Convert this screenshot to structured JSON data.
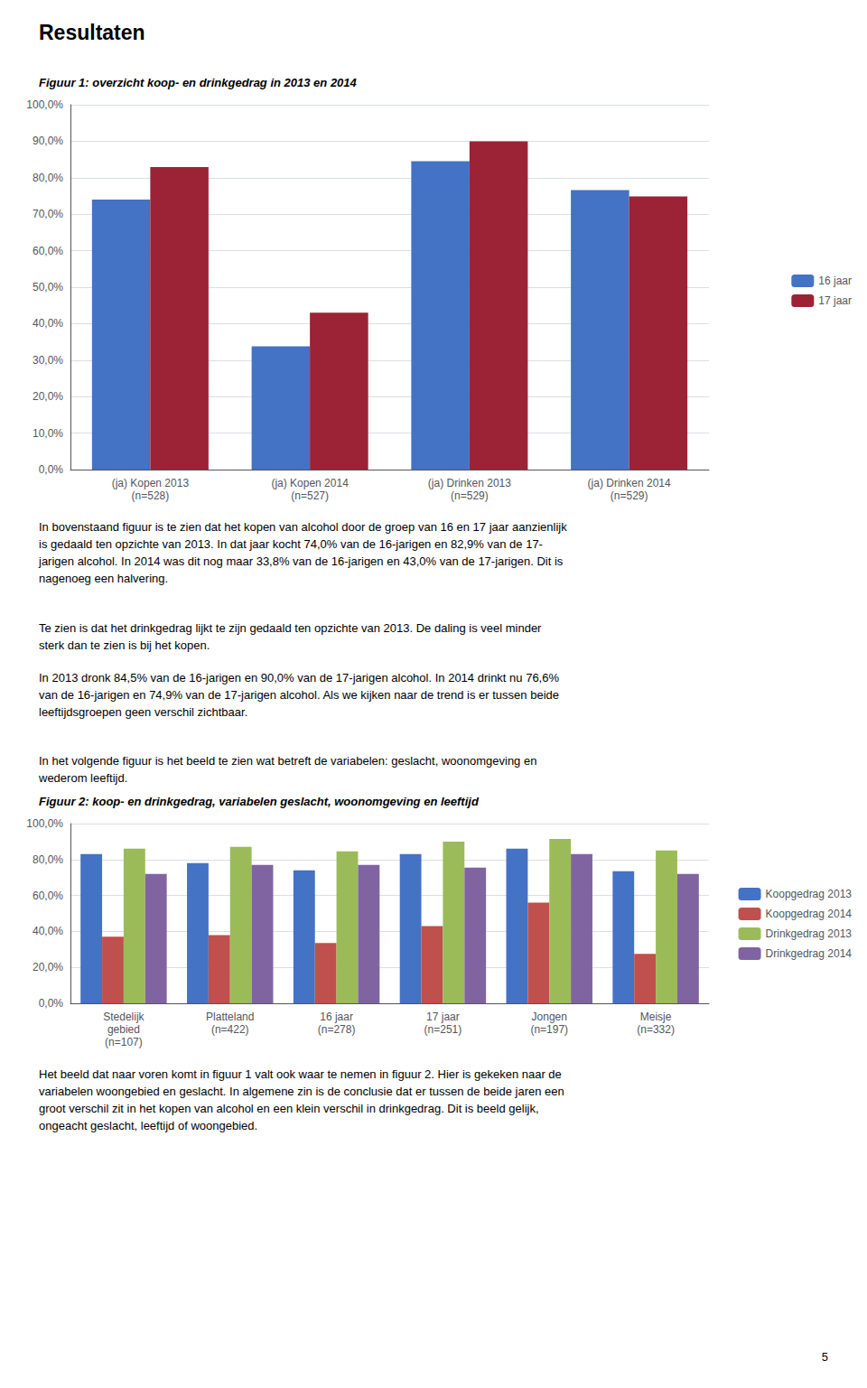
{
  "chart_data": [
    {
      "type": "bar",
      "title": "Figuur 1: overzicht koop- en drinkgedrag in 2013 en 2014",
      "categories": [
        "(ja) Kopen 2013\n(n=528)",
        "(ja) Kopen 2014\n(n=527)",
        "(ja) Drinken 2013\n(n=529)",
        "(ja) Drinken 2014\n(n=529)"
      ],
      "series": [
        {
          "name": "16 jaar",
          "color": "#4472C4",
          "values": [
            74.0,
            33.8,
            84.5,
            76.6
          ]
        },
        {
          "name": "17 jaar",
          "color": "#9B2335",
          "values": [
            82.9,
            43.0,
            90.0,
            74.9
          ]
        }
      ],
      "ylim": [
        0,
        100
      ],
      "yticks": [
        {
          "value": 0,
          "label": "0,0%"
        },
        {
          "value": 10,
          "label": "10,0%"
        },
        {
          "value": 20,
          "label": "20,0%"
        },
        {
          "value": 30,
          "label": "30,0%"
        },
        {
          "value": 40,
          "label": "40,0%"
        },
        {
          "value": 50,
          "label": "50,0%"
        },
        {
          "value": 60,
          "label": "60,0%"
        },
        {
          "value": 70,
          "label": "70,0%"
        },
        {
          "value": 80,
          "label": "80,0%"
        },
        {
          "value": 90,
          "label": "90,0%"
        },
        {
          "value": 100,
          "label": "100,0%"
        }
      ],
      "grid": true,
      "legend": "right"
    },
    {
      "type": "bar",
      "title": "Figuur 2: koop- en drinkgedrag, variabelen geslacht, woonomgeving en leeftijd",
      "categories": [
        "Stedelijk\ngebied\n(n=107)",
        "Platteland\n(n=422)",
        "16 jaar\n(n=278)",
        "17 jaar\n(n=251)",
        "Jongen\n(n=197)",
        "Meisje\n(n=332)"
      ],
      "series": [
        {
          "name": "Koopgedrag 2013",
          "color": "#4472C4",
          "values": [
            83.0,
            78.0,
            74.0,
            83.0,
            86.0,
            73.5
          ]
        },
        {
          "name": "Koopgedrag 2014",
          "color": "#C0504D",
          "values": [
            37.0,
            38.0,
            33.5,
            43.0,
            56.0,
            27.5
          ]
        },
        {
          "name": "Drinkgedrag 2013",
          "color": "#9BBB59",
          "values": [
            86.0,
            87.0,
            84.5,
            90.0,
            91.5,
            85.0
          ]
        },
        {
          "name": "Drinkgedrag 2014",
          "color": "#8064A2",
          "values": [
            72.0,
            77.0,
            77.0,
            75.5,
            83.0,
            72.0
          ]
        }
      ],
      "ylim": [
        0,
        100
      ],
      "yticks": [
        {
          "value": 0,
          "label": "0,0%"
        },
        {
          "value": 20,
          "label": "20,0%"
        },
        {
          "value": 40,
          "label": "40,0%"
        },
        {
          "value": 60,
          "label": "60,0%"
        },
        {
          "value": 80,
          "label": "80,0%"
        },
        {
          "value": 100,
          "label": "100,0%"
        }
      ],
      "grid": true,
      "legend": "right"
    }
  ],
  "annotations": [
    "Resultaten",
    "In bovenstaand figuur is te zien dat het kopen van alcohol door de groep van 16 en 17 jaar aanzienlijk\nis gedaald ten opzichte van 2013. In dat jaar kocht 74,0% van de 16-jarigen en 82,9% van de 17-\njarigen alcohol. In 2014 was dit nog maar 33,8% van de 16-jarigen en 43,0% van de 17-jarigen. Dit is\nnagenoeg een halvering.",
    "Te zien is dat het drinkgedrag lijkt te zijn gedaald ten opzichte van 2013. De daling is veel minder\nsterk dan te zien is bij het kopen.",
    "In 2013 dronk 84,5% van de 16-jarigen en 90,0% van de 17-jarigen alcohol. In 2014 drinkt nu 76,6%\nvan de 16-jarigen en 74,9% van de 17-jarigen alcohol. Als we kijken naar de trend is er tussen beide\nleeftijdsgroepen geen verschil zichtbaar.",
    "In het volgende figuur is het beeld te zien wat betreft de variabelen: geslacht, woonomgeving en\nwederom leeftijd.",
    "Het beeld dat naar voren komt in figuur 1 valt ook waar te nemen in figuur 2. Hier is gekeken naar de\nvariabelen woongebied en geslacht. In algemene zin is de conclusie dat er tussen de beide jaren een\ngroot verschil zit in het kopen van alcohol en een klein verschil in drinkgedrag. Dit is beeld gelijk,\nongeacht geslacht, leeftijd of woongebied.",
    "5"
  ]
}
